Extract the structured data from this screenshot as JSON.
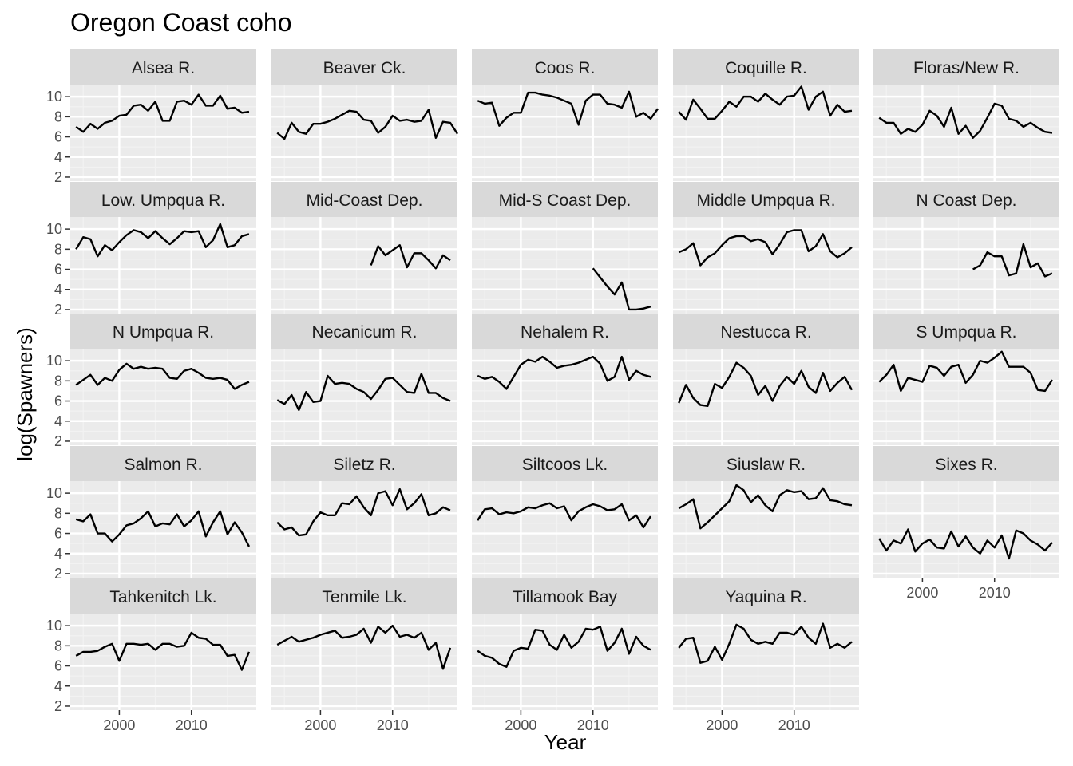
{
  "chart_data": {
    "type": "line",
    "title": "Oregon Coast coho",
    "xlabel": "Year",
    "ylabel": "log(Spawners)",
    "xlim": [
      1993.2,
      2019.0
    ],
    "ylim": [
      1.6,
      11.2
    ],
    "x_ticks": [
      2000,
      2010
    ],
    "y_ticks": [
      2,
      4,
      6,
      8,
      10
    ],
    "grid": true,
    "colors": {
      "panel_bg": "#EBEBEB",
      "strip_bg": "#D9D9D9",
      "grid_major": "#FFFFFF",
      "grid_minor": "#F2F2F2",
      "line": "#000000",
      "axis_text": "#4D4D4D",
      "strip_text": "#1A1A1A"
    },
    "panels": [
      {
        "name": "Alsea R.",
        "start": 1994,
        "values": [
          7.0,
          6.5,
          7.3,
          6.8,
          7.4,
          7.6,
          8.1,
          8.2,
          9.1,
          9.2,
          8.6,
          9.5,
          7.6,
          7.6,
          9.5,
          9.6,
          9.2,
          10.2,
          9.1,
          9.1,
          10.1,
          8.8,
          8.9,
          8.4,
          8.5
        ]
      },
      {
        "name": "Beaver Ck.",
        "start": 1994,
        "values": [
          6.4,
          5.8,
          7.4,
          6.5,
          6.3,
          7.3,
          7.3,
          7.5,
          7.8,
          8.2,
          8.6,
          8.5,
          7.7,
          7.6,
          6.4,
          7.0,
          8.1,
          7.6,
          7.7,
          7.5,
          7.6,
          8.7,
          5.9,
          7.5,
          7.4,
          6.3
        ]
      },
      {
        "name": "Coos R.",
        "start": 1994,
        "values": [
          9.6,
          9.3,
          9.4,
          7.1,
          7.9,
          8.4,
          8.4,
          10.4,
          10.4,
          10.2,
          10.1,
          9.9,
          9.6,
          9.3,
          7.2,
          9.6,
          10.2,
          10.2,
          9.3,
          9.2,
          8.9,
          10.5,
          8.0,
          8.4,
          7.8,
          8.8
        ]
      },
      {
        "name": "Coquille R.",
        "start": 1994,
        "values": [
          8.5,
          7.7,
          9.7,
          8.8,
          7.8,
          7.8,
          8.6,
          9.5,
          9.0,
          10.0,
          10.0,
          9.5,
          10.3,
          9.7,
          9.2,
          10.0,
          10.1,
          11.0,
          8.7,
          10.0,
          10.5,
          8.1,
          9.2,
          8.5,
          8.6
        ]
      },
      {
        "name": "Floras/New R.",
        "start": 1994,
        "values": [
          7.9,
          7.4,
          7.4,
          6.3,
          6.8,
          6.5,
          7.2,
          8.6,
          8.1,
          7.0,
          8.9,
          6.3,
          7.1,
          5.9,
          6.6,
          7.9,
          9.3,
          9.1,
          7.8,
          7.6,
          7.0,
          7.4,
          6.9,
          6.5,
          6.4
        ]
      },
      {
        "name": "Low. Umpqua R.",
        "start": 1994,
        "values": [
          8.0,
          9.2,
          9.0,
          7.3,
          8.4,
          7.9,
          8.7,
          9.4,
          9.9,
          9.7,
          9.1,
          9.8,
          9.1,
          8.5,
          9.1,
          9.8,
          9.7,
          9.8,
          8.2,
          8.9,
          10.5,
          8.2,
          8.4,
          9.3,
          9.5
        ]
      },
      {
        "name": "Mid-Coast Dep.",
        "start": 2007,
        "values": [
          6.4,
          8.3,
          7.4,
          7.9,
          8.4,
          6.2,
          7.6,
          7.6,
          6.9,
          6.1,
          7.4,
          6.9
        ]
      },
      {
        "name": "Mid-S Coast Dep.",
        "start": 2010,
        "values": [
          6.1,
          5.2,
          4.3,
          3.5,
          4.7,
          2.0,
          2.0,
          2.1,
          2.3
        ]
      },
      {
        "name": "Middle Umpqua R.",
        "start": 1994,
        "values": [
          7.7,
          8.0,
          8.6,
          6.4,
          7.2,
          7.6,
          8.4,
          9.1,
          9.3,
          9.3,
          8.8,
          9.0,
          8.7,
          7.5,
          8.5,
          9.7,
          9.9,
          9.9,
          7.8,
          8.3,
          9.5,
          7.8,
          7.2,
          7.6,
          8.2
        ]
      },
      {
        "name": "N Coast Dep.",
        "start": 2007,
        "values": [
          6.0,
          6.4,
          7.7,
          7.3,
          7.3,
          5.4,
          5.6,
          8.5,
          6.2,
          6.6,
          5.3,
          5.6
        ]
      },
      {
        "name": "N Umpqua R.",
        "start": 1994,
        "values": [
          7.6,
          8.1,
          8.6,
          7.6,
          8.3,
          8.0,
          9.1,
          9.7,
          9.2,
          9.4,
          9.2,
          9.3,
          9.2,
          8.3,
          8.2,
          9.0,
          9.2,
          8.8,
          8.3,
          8.2,
          8.3,
          8.1,
          7.2,
          7.6,
          7.9
        ]
      },
      {
        "name": "Necanicum R.",
        "start": 1994,
        "values": [
          6.1,
          5.7,
          6.6,
          5.1,
          6.9,
          5.9,
          6.0,
          8.5,
          7.7,
          7.8,
          7.7,
          7.2,
          6.9,
          6.2,
          7.1,
          8.2,
          8.3,
          7.6,
          6.9,
          6.8,
          8.7,
          6.8,
          6.8,
          6.3,
          6.0
        ]
      },
      {
        "name": "Nehalem R.",
        "start": 1994,
        "values": [
          8.5,
          8.2,
          8.4,
          7.9,
          7.2,
          8.4,
          9.6,
          10.1,
          9.9,
          10.4,
          9.9,
          9.3,
          9.5,
          9.6,
          9.8,
          10.1,
          10.4,
          9.7,
          8.0,
          8.4,
          10.4,
          8.1,
          9.0,
          8.6,
          8.4
        ]
      },
      {
        "name": "Nestucca R.",
        "start": 1994,
        "values": [
          5.8,
          7.6,
          6.3,
          5.6,
          5.5,
          7.7,
          7.3,
          8.4,
          9.8,
          9.3,
          8.5,
          6.6,
          7.5,
          6.0,
          7.5,
          8.4,
          7.7,
          9.0,
          7.4,
          6.8,
          8.8,
          7.0,
          7.8,
          8.4,
          7.1
        ]
      },
      {
        "name": "S Umpqua R.",
        "start": 1994,
        "values": [
          7.9,
          8.6,
          9.6,
          7.0,
          8.3,
          8.1,
          7.9,
          9.5,
          9.3,
          8.5,
          9.4,
          9.6,
          7.8,
          8.6,
          10.0,
          9.8,
          10.3,
          10.9,
          9.4,
          9.4,
          9.4,
          8.8,
          7.1,
          7.0,
          8.1
        ]
      },
      {
        "name": "Salmon R.",
        "start": 1994,
        "values": [
          7.4,
          7.2,
          7.9,
          6.0,
          6.0,
          5.2,
          5.9,
          6.8,
          7.0,
          7.5,
          8.2,
          6.7,
          7.0,
          6.9,
          7.9,
          6.7,
          7.3,
          8.2,
          5.7,
          7.1,
          8.2,
          5.9,
          7.1,
          6.1,
          4.7
        ]
      },
      {
        "name": "Siletz R.",
        "start": 1994,
        "values": [
          7.1,
          6.4,
          6.6,
          5.8,
          5.9,
          7.2,
          8.1,
          7.8,
          7.8,
          9.0,
          8.9,
          9.7,
          8.6,
          7.8,
          10.0,
          10.2,
          8.8,
          10.4,
          8.4,
          9.0,
          9.9,
          7.8,
          8.0,
          8.6,
          8.3
        ]
      },
      {
        "name": "Siltcoos Lk.",
        "start": 1994,
        "values": [
          7.3,
          8.4,
          8.5,
          7.9,
          8.1,
          8.0,
          8.2,
          8.6,
          8.5,
          8.8,
          9.0,
          8.5,
          8.7,
          7.3,
          8.2,
          8.6,
          8.9,
          8.7,
          8.3,
          8.4,
          8.9,
          7.3,
          7.8,
          6.6,
          7.7
        ]
      },
      {
        "name": "Siuslaw R.",
        "start": 1994,
        "values": [
          8.5,
          8.9,
          9.4,
          6.5,
          7.1,
          7.8,
          8.5,
          9.2,
          10.8,
          10.3,
          9.1,
          9.8,
          8.8,
          8.2,
          9.8,
          10.3,
          10.1,
          10.2,
          9.4,
          9.5,
          10.5,
          9.3,
          9.2,
          8.9,
          8.8
        ]
      },
      {
        "name": "Sixes R.",
        "start": 1994,
        "values": [
          5.5,
          4.3,
          5.3,
          5.0,
          6.4,
          4.2,
          5.0,
          5.4,
          4.6,
          4.5,
          6.2,
          4.7,
          5.7,
          4.6,
          4.0,
          5.3,
          4.6,
          5.8,
          3.5,
          6.3,
          6.0,
          5.3,
          4.9,
          4.3,
          5.1
        ]
      },
      {
        "name": "Tahkenitch Lk.",
        "start": 1994,
        "values": [
          7.0,
          7.4,
          7.4,
          7.5,
          7.9,
          8.2,
          6.5,
          8.2,
          8.2,
          8.1,
          8.2,
          7.6,
          8.2,
          8.2,
          7.9,
          8.0,
          9.3,
          8.8,
          8.7,
          8.1,
          8.1,
          7.0,
          7.1,
          5.6,
          7.4
        ]
      },
      {
        "name": "Tenmile Lk.",
        "start": 1994,
        "values": [
          8.1,
          8.5,
          8.9,
          8.4,
          8.6,
          8.8,
          9.1,
          9.3,
          9.5,
          8.8,
          8.9,
          9.1,
          9.7,
          8.3,
          9.9,
          9.3,
          10.0,
          8.9,
          9.1,
          8.8,
          9.3,
          7.6,
          8.3,
          5.7,
          7.8
        ]
      },
      {
        "name": "Tillamook Bay",
        "start": 1994,
        "values": [
          7.5,
          7.0,
          6.8,
          6.2,
          5.9,
          7.5,
          7.8,
          7.7,
          9.6,
          9.5,
          8.1,
          7.6,
          9.1,
          7.8,
          8.4,
          9.7,
          9.6,
          9.9,
          7.5,
          8.3,
          9.7,
          7.2,
          8.9,
          8.0,
          7.6
        ]
      },
      {
        "name": "Yaquina R.",
        "start": 1994,
        "values": [
          7.8,
          8.7,
          8.8,
          6.3,
          6.5,
          7.9,
          6.6,
          8.2,
          10.1,
          9.7,
          8.6,
          8.2,
          8.4,
          8.2,
          9.3,
          9.3,
          9.1,
          9.9,
          8.8,
          8.2,
          10.2,
          7.8,
          8.2,
          7.8,
          8.4
        ]
      }
    ]
  }
}
